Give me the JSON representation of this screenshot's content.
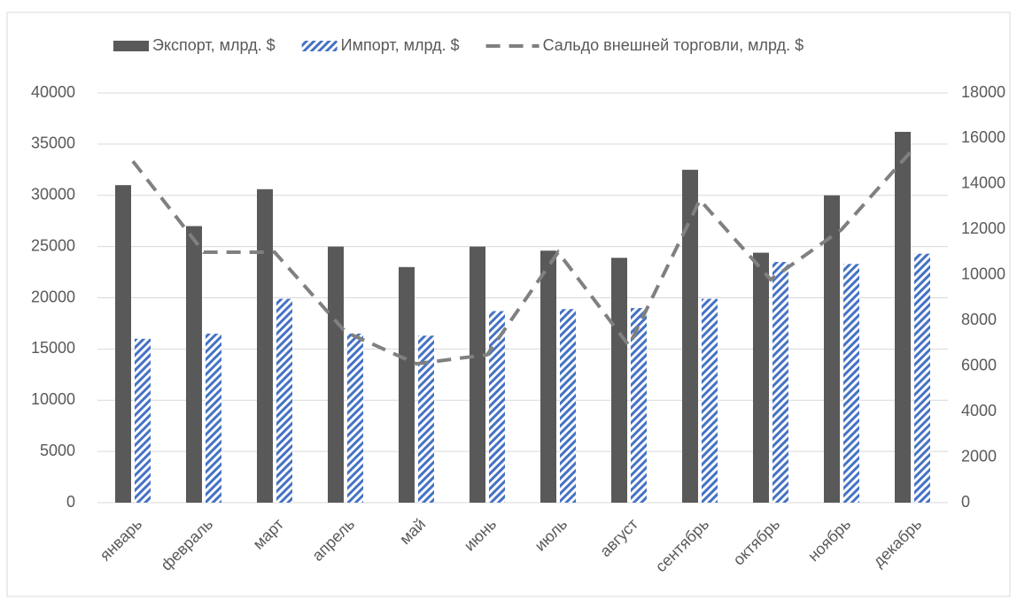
{
  "chart_data": {
    "type": "bar_line",
    "categories": [
      "январь",
      "февраль",
      "март",
      "апрель",
      "май",
      "июнь",
      "июль",
      "август",
      "сентябрь",
      "октябрь",
      "ноябрь",
      "декабрь"
    ],
    "series": [
      {
        "name": "Экспорт, млрд. $",
        "color": "#595959",
        "type": "bar",
        "values": [
          31000,
          27000,
          30600,
          25000,
          23000,
          25000,
          24600,
          23900,
          32500,
          24400,
          30000,
          36200
        ]
      },
      {
        "name": "Импорт, млрд. $",
        "color": "#4472c4",
        "type": "bar",
        "pattern": "hatch",
        "values": [
          16000,
          16500,
          19900,
          16500,
          16300,
          18700,
          18900,
          19000,
          19900,
          23500,
          23300,
          24300
        ]
      },
      {
        "name": "Сальдо внешней торговли, млрд. $",
        "color": "#808080",
        "type": "line",
        "dashed": true,
        "axis": "y2",
        "values": [
          15000,
          11000,
          11000,
          7500,
          6100,
          6500,
          11000,
          6900,
          13300,
          9800,
          12000,
          15500
        ]
      }
    ],
    "ylim": [
      0,
      40000
    ],
    "yticks": [
      0,
      5000,
      10000,
      15000,
      20000,
      25000,
      30000,
      35000,
      40000
    ],
    "y2lim": [
      0,
      18000
    ],
    "y2ticks": [
      0,
      2000,
      4000,
      6000,
      8000,
      10000,
      12000,
      14000,
      16000,
      18000
    ],
    "grid": true,
    "legend": "top"
  }
}
